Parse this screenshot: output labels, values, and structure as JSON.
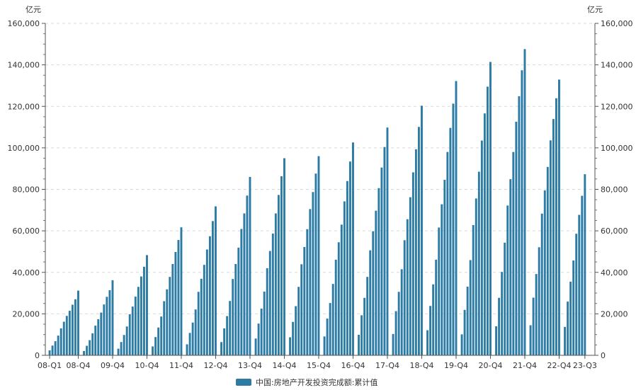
{
  "chart_data": {
    "type": "bar",
    "title": "",
    "xlabel": "",
    "y_unit_left": "亿元",
    "y_unit_right": "亿元",
    "ylim": [
      0,
      160000
    ],
    "y_ticks": [
      "0",
      "20,000",
      "40,000",
      "60,000",
      "80,000",
      "100,000",
      "120,000",
      "140,000",
      "160,000"
    ],
    "x_tick_labels": [
      "08-Q1",
      "08-Q4",
      "09-Q4",
      "10-Q4",
      "11-Q4",
      "12-Q4",
      "13-Q4",
      "14-Q4",
      "15-Q4",
      "16-Q4",
      "17-Q4",
      "18-Q4",
      "19-Q4",
      "20-Q4",
      "21-Q4",
      "22-Q4",
      "23-Q3"
    ],
    "grid": true,
    "legend_position": "bottom-center",
    "series": [
      {
        "name": "中国:房地产开发投资完成额:累计值",
        "color": "#2b7ba5",
        "years": [
          {
            "label": "08",
            "values": [
              2400,
              4700,
              6800,
              9500,
              13000,
              16200,
              19000,
              21500,
              24400,
              27000,
              31200
            ]
          },
          {
            "label": "09",
            "values": [
              2100,
              4600,
              7300,
              10600,
              14300,
              17400,
              20600,
              24500,
              28200,
              31400,
              36200
            ]
          },
          {
            "label": "10",
            "values": [
              3200,
              6400,
              9800,
              13900,
              19800,
              23500,
              28300,
              33000,
              38000,
              42700,
              48300
            ]
          },
          {
            "label": "11",
            "values": [
              4300,
              8800,
              13400,
              18700,
              26100,
              31800,
              37800,
              44000,
              49800,
              55600,
              61700
            ]
          },
          {
            "label": "12",
            "values": [
              5300,
              10800,
              15800,
              22100,
              30600,
              36900,
              43600,
              51000,
              57400,
              64700,
              71800
            ]
          },
          {
            "label": "13",
            "values": [
              6400,
              13000,
              18900,
              26200,
              36800,
              44000,
              51900,
              60900,
              68400,
              77000,
              86000
            ]
          },
          {
            "label": "14",
            "values": [
              8100,
              15300,
              22500,
              30700,
              42000,
              50300,
              58700,
              68400,
              77300,
              86300,
              95000
            ]
          },
          {
            "label": "15",
            "values": [
              8700,
              16100,
              23700,
              33000,
              43900,
              52200,
              60800,
              70500,
              78700,
              87600,
              96000
            ]
          },
          {
            "label": "16",
            "values": [
              9100,
              17700,
              25200,
              34400,
              46100,
              54500,
              63000,
              74200,
              84000,
              93400,
              102600
            ]
          },
          {
            "label": "17",
            "values": [
              9900,
              19300,
              27700,
              37800,
              50600,
              59800,
              69700,
              80600,
              90500,
              100400,
              109800
            ]
          },
          {
            "label": "18",
            "values": [
              10300,
              21300,
              30600,
              41500,
              55500,
              65600,
              76200,
              88200,
              99300,
              110100,
              120300
            ]
          },
          {
            "label": "19",
            "values": [
              12100,
              23800,
              34200,
              46100,
              61600,
              72800,
              84600,
              98000,
              109600,
              121300,
              132200
            ]
          },
          {
            "label": "20",
            "values": [
              10100,
              21900,
              33100,
              45900,
              62800,
              75600,
              88500,
              103500,
              116600,
              129500,
              141400
            ]
          },
          {
            "label": "21",
            "values": [
              14000,
              27700,
              40200,
              54300,
              72200,
              84900,
              98000,
              112600,
              124900,
              137400,
              147600
            ]
          },
          {
            "label": "22",
            "values": [
              14500,
              27800,
              39200,
              52100,
              68300,
              79500,
              90800,
              103600,
              113900,
              123900,
              132900
            ]
          },
          {
            "label": "23",
            "values": [
              13700,
              25900,
              35500,
              45700,
              58600,
              67700,
              76900,
              87300
            ]
          }
        ]
      }
    ]
  }
}
